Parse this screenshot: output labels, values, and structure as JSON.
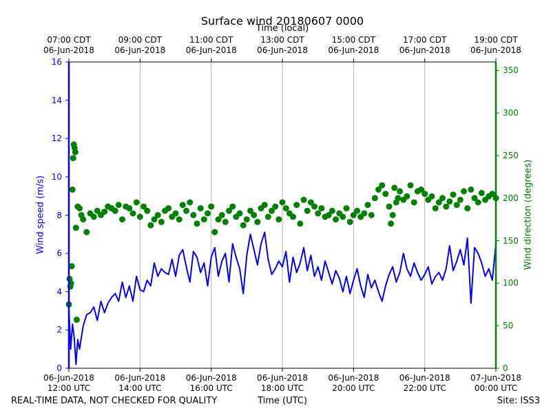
{
  "chart_data": {
    "type": "line",
    "title": "Surface wind 20180607 0000",
    "top_axis_label": "Time (local)",
    "xlabel": "Time (UTC)",
    "ylabel_left": "Wind speed (m/s)",
    "ylabel_right": "Wind direction (degrees)",
    "x_range_hours": [
      12,
      24
    ],
    "ylim_left": [
      0,
      16
    ],
    "ylim_right": [
      0,
      360
    ],
    "grid": "vertical",
    "bottom_ticks": [
      {
        "hour": 12,
        "date": "06-Jun-2018",
        "time": "12:00 UTC"
      },
      {
        "hour": 14,
        "date": "06-Jun-2018",
        "time": "14:00 UTC"
      },
      {
        "hour": 16,
        "date": "06-Jun-2018",
        "time": "16:00 UTC"
      },
      {
        "hour": 18,
        "date": "06-Jun-2018",
        "time": "18:00 UTC"
      },
      {
        "hour": 20,
        "date": "06-Jun-2018",
        "time": "20:00 UTC"
      },
      {
        "hour": 22,
        "date": "06-Jun-2018",
        "time": "22:00 UTC"
      },
      {
        "hour": 24,
        "date": "07-Jun-2018",
        "time": "00:00 UTC"
      }
    ],
    "top_ticks": [
      {
        "hour": 12,
        "time": "07:00 CDT",
        "date": "06-Jun-2018"
      },
      {
        "hour": 14,
        "time": "09:00 CDT",
        "date": "06-Jun-2018"
      },
      {
        "hour": 16,
        "time": "11:00 CDT",
        "date": "06-Jun-2018"
      },
      {
        "hour": 18,
        "time": "13:00 CDT",
        "date": "06-Jun-2018"
      },
      {
        "hour": 20,
        "time": "15:00 CDT",
        "date": "06-Jun-2018"
      },
      {
        "hour": 22,
        "time": "17:00 CDT",
        "date": "06-Jun-2018"
      },
      {
        "hour": 24,
        "time": "19:00 CDT",
        "date": "06-Jun-2018"
      }
    ],
    "left_ticks": [
      "0",
      "2",
      "4",
      "6",
      "8",
      "10",
      "12",
      "14",
      "16"
    ],
    "right_ticks": [
      "0",
      "50",
      "100",
      "150",
      "200",
      "250",
      "300",
      "350"
    ],
    "series": [
      {
        "name": "Wind speed",
        "axis": "left",
        "color": "#0000ff",
        "style": "line",
        "x": [
          12.0,
          12.05,
          12.1,
          12.15,
          12.2,
          12.25,
          12.3,
          12.4,
          12.5,
          12.6,
          12.7,
          12.8,
          12.9,
          13.0,
          13.1,
          13.2,
          13.3,
          13.4,
          13.5,
          13.6,
          13.7,
          13.8,
          13.9,
          14.0,
          14.1,
          14.2,
          14.3,
          14.4,
          14.5,
          14.6,
          14.7,
          14.8,
          14.9,
          15.0,
          15.1,
          15.2,
          15.3,
          15.4,
          15.5,
          15.6,
          15.7,
          15.8,
          15.9,
          16.0,
          16.1,
          16.2,
          16.3,
          16.4,
          16.5,
          16.6,
          16.7,
          16.8,
          16.9,
          17.0,
          17.1,
          17.2,
          17.3,
          17.4,
          17.5,
          17.6,
          17.7,
          17.8,
          17.9,
          18.0,
          18.1,
          18.2,
          18.3,
          18.4,
          18.5,
          18.6,
          18.7,
          18.8,
          18.9,
          19.0,
          19.1,
          19.2,
          19.3,
          19.4,
          19.5,
          19.6,
          19.7,
          19.8,
          19.9,
          20.0,
          20.1,
          20.2,
          20.3,
          20.4,
          20.5,
          20.6,
          20.7,
          20.8,
          20.9,
          21.0,
          21.1,
          21.2,
          21.3,
          21.4,
          21.5,
          21.6,
          21.7,
          21.8,
          21.9,
          22.0,
          22.1,
          22.2,
          22.3,
          22.4,
          22.5,
          22.6,
          22.7,
          22.8,
          22.9,
          23.0,
          23.1,
          23.2,
          23.3,
          23.4,
          23.5,
          23.6,
          23.7,
          23.8,
          23.9,
          24.0
        ],
        "values": [
          3.1,
          1.0,
          2.3,
          1.6,
          0.2,
          1.5,
          1.0,
          2.2,
          2.8,
          2.9,
          3.2,
          2.5,
          3.5,
          2.9,
          3.4,
          3.7,
          3.9,
          3.5,
          4.5,
          3.7,
          4.3,
          3.5,
          4.8,
          4.1,
          4.0,
          4.6,
          4.3,
          5.5,
          4.8,
          5.2,
          5.0,
          4.9,
          5.7,
          4.8,
          5.9,
          6.2,
          5.3,
          4.5,
          6.1,
          5.8,
          5.0,
          5.5,
          4.3,
          5.8,
          6.3,
          4.8,
          5.6,
          6.0,
          4.5,
          6.5,
          5.8,
          5.2,
          3.9,
          5.9,
          7.0,
          6.2,
          5.4,
          6.5,
          7.1,
          5.7,
          4.9,
          5.2,
          5.6,
          5.3,
          6.1,
          4.5,
          5.8,
          5.0,
          5.5,
          6.3,
          5.1,
          5.9,
          4.8,
          5.3,
          4.6,
          5.6,
          5.0,
          4.4,
          5.1,
          4.7,
          4.0,
          4.8,
          3.9,
          4.6,
          5.2,
          4.3,
          3.7,
          4.9,
          4.2,
          4.6,
          4.0,
          3.5,
          4.3,
          4.9,
          5.3,
          4.5,
          5.0,
          6.0,
          5.2,
          4.8,
          5.5,
          5.0,
          4.6,
          4.9,
          5.3,
          4.4,
          4.8,
          5.0,
          4.6,
          5.2,
          6.4,
          5.1,
          5.6,
          6.2,
          5.4,
          6.8,
          3.4,
          6.3,
          6.0,
          5.5,
          4.8,
          5.2,
          4.6,
          6.5
        ]
      },
      {
        "name": "Wind direction",
        "axis": "right",
        "color": "#008000",
        "style": "markers",
        "x": [
          12.0,
          12.02,
          12.04,
          12.06,
          12.08,
          12.1,
          12.12,
          12.14,
          12.16,
          12.18,
          12.2,
          12.22,
          12.25,
          12.3,
          12.35,
          12.4,
          12.5,
          12.6,
          12.7,
          12.8,
          12.9,
          13.0,
          13.1,
          13.2,
          13.3,
          13.4,
          13.5,
          13.6,
          13.7,
          13.8,
          13.9,
          14.0,
          14.1,
          14.2,
          14.3,
          14.4,
          14.5,
          14.6,
          14.7,
          14.8,
          14.9,
          15.0,
          15.1,
          15.2,
          15.3,
          15.4,
          15.5,
          15.6,
          15.7,
          15.8,
          15.9,
          16.0,
          16.1,
          16.2,
          16.3,
          16.4,
          16.5,
          16.6,
          16.7,
          16.8,
          16.9,
          17.0,
          17.1,
          17.2,
          17.3,
          17.4,
          17.5,
          17.6,
          17.7,
          17.8,
          17.9,
          18.0,
          18.1,
          18.2,
          18.3,
          18.4,
          18.5,
          18.6,
          18.7,
          18.8,
          18.9,
          19.0,
          19.1,
          19.2,
          19.3,
          19.4,
          19.5,
          19.6,
          19.7,
          19.8,
          19.9,
          20.0,
          20.1,
          20.2,
          20.3,
          20.4,
          20.5,
          20.6,
          20.7,
          20.8,
          20.9,
          21.0,
          21.05,
          21.1,
          21.15,
          21.2,
          21.25,
          21.3,
          21.4,
          21.5,
          21.6,
          21.7,
          21.8,
          21.9,
          22.0,
          22.1,
          22.2,
          22.3,
          22.4,
          22.5,
          22.6,
          22.7,
          22.8,
          22.9,
          23.0,
          23.1,
          23.2,
          23.3,
          23.4,
          23.5,
          23.6,
          23.7,
          23.8,
          23.9,
          24.0
        ],
        "values": [
          75,
          105,
          96,
          100,
          120,
          210,
          247,
          263,
          259,
          254,
          165,
          57,
          190,
          188,
          180,
          175,
          160,
          182,
          178,
          185,
          180,
          184,
          190,
          188,
          185,
          192,
          175,
          190,
          188,
          182,
          195,
          178,
          190,
          185,
          168,
          175,
          180,
          172,
          185,
          188,
          178,
          182,
          175,
          192,
          185,
          195,
          180,
          170,
          188,
          175,
          182,
          190,
          160,
          175,
          180,
          172,
          185,
          190,
          178,
          182,
          168,
          175,
          185,
          180,
          172,
          188,
          192,
          178,
          185,
          190,
          175,
          195,
          188,
          182,
          178,
          192,
          170,
          198,
          185,
          195,
          190,
          182,
          188,
          178,
          180,
          185,
          175,
          182,
          178,
          188,
          172,
          180,
          185,
          178,
          182,
          192,
          180,
          200,
          210,
          215,
          205,
          190,
          170,
          180,
          212,
          195,
          200,
          208,
          198,
          202,
          215,
          195,
          208,
          210,
          205,
          198,
          202,
          188,
          195,
          200,
          190,
          196,
          204,
          192,
          198,
          208,
          188,
          210,
          200,
          195,
          206,
          198,
          202,
          205,
          200
        ]
      }
    ]
  },
  "footer": {
    "left": "REAL-TIME DATA, NOT CHECKED FOR QUALITY",
    "center": "Time (UTC)",
    "right": "Site: ISS3"
  }
}
